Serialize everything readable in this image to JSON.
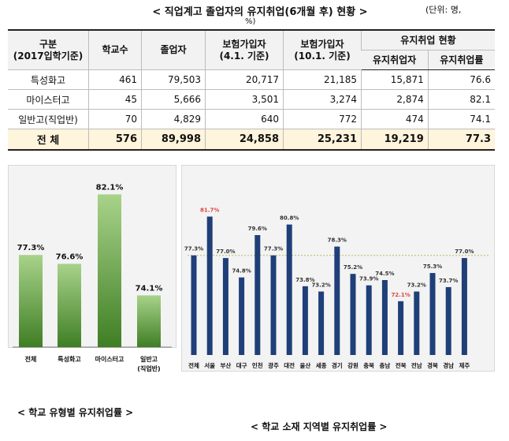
{
  "header": {
    "title": "< 직업계고 졸업자의 유지취업(6개월 후) 현황 >",
    "unit_line1": "(단위: 명,",
    "unit_line2": "%)"
  },
  "table": {
    "col_gubun": "구분",
    "col_gubun_sub": "(2017입학기준)",
    "col_schools": "학교수",
    "col_graduates": "졸업자",
    "col_ins1": "보험가입자",
    "col_ins1_sub": "(4.1. 기준)",
    "col_ins2": "보험가입자",
    "col_ins2_sub": "(10.1. 기준)",
    "col_group": "유지취업 현황",
    "col_retained": "유지취업자",
    "col_rate": "유지취업률",
    "rows": [
      {
        "name": "특성화고",
        "schools": "461",
        "graduates": "79,503",
        "ins1": "20,717",
        "ins2": "21,185",
        "retained": "15,871",
        "rate": "76.6"
      },
      {
        "name": "마이스터고",
        "schools": "45",
        "graduates": "5,666",
        "ins1": "3,501",
        "ins2": "3,274",
        "retained": "2,874",
        "rate": "82.1"
      },
      {
        "name": "일반고(직업반)",
        "schools": "70",
        "graduates": "4,829",
        "ins1": "640",
        "ins2": "772",
        "retained": "474",
        "rate": "74.1"
      }
    ],
    "total": {
      "name": "전 체",
      "schools": "576",
      "graduates": "89,998",
      "ins1": "24,858",
      "ins2": "25,231",
      "retained": "19,219",
      "rate": "77.3"
    }
  },
  "chart_data": [
    {
      "type": "bar",
      "title": "< 학교 유형별 유지취업률 >",
      "categories": [
        "전체",
        "특성화고",
        "마이스터고",
        "일반고\n(직업반)"
      ],
      "values": [
        77.3,
        76.6,
        82.1,
        74.1
      ],
      "value_labels": [
        "77.3%",
        "76.6%",
        "82.1%",
        "74.1%"
      ],
      "ylim": [
        70,
        83
      ],
      "xlabel": "",
      "ylabel": "",
      "color_light": "#a8d38a",
      "color_dark": "#3f7e24"
    },
    {
      "type": "bar",
      "title": "< 학교 소재 지역별 유지취업률 >",
      "categories": [
        "전체",
        "서울",
        "부산",
        "대구",
        "인천",
        "광주",
        "대전",
        "울산",
        "세종",
        "경기",
        "강원",
        "충북",
        "충남",
        "전북",
        "전남",
        "경북",
        "경남",
        "제주"
      ],
      "values": [
        77.3,
        81.7,
        77.0,
        74.8,
        79.6,
        77.3,
        80.8,
        73.8,
        73.2,
        78.3,
        75.2,
        73.9,
        74.5,
        72.1,
        73.2,
        75.3,
        73.7,
        77.0
      ],
      "value_labels": [
        "77.3%",
        "81.7%",
        "77.0%",
        "74.8%",
        "79.6%",
        "77.3%",
        "80.8%",
        "73.8%",
        "73.2%",
        "78.3%",
        "75.2%",
        "73.9%",
        "74.5%",
        "72.1%",
        "73.2%",
        "75.3%",
        "73.7%",
        "77.0%"
      ],
      "highlight_max": "서울",
      "highlight_min": "전북",
      "reference_value": 77.3,
      "ylim": [
        66,
        83
      ],
      "xlabel": "",
      "ylabel": "",
      "bar_color": "#1f3f79",
      "highlight_color": "#e04545",
      "reference_color": "#b9b96a"
    }
  ]
}
